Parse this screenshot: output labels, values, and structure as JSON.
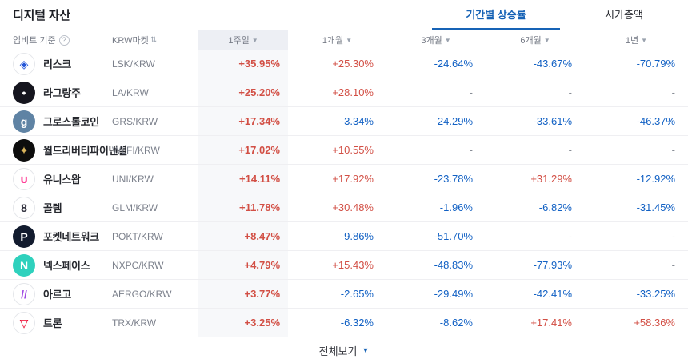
{
  "header": {
    "title": "디지털 자산",
    "tabs": [
      {
        "label": "기간별 상승률"
      },
      {
        "label": "시가총액"
      }
    ]
  },
  "table": {
    "basis_label": "업비트 기준",
    "market_label": "KRW마켓",
    "period_columns": [
      "1주일",
      "1개월",
      "3개월",
      "6개월",
      "1년"
    ],
    "rows": [
      {
        "name": "리스크",
        "ticker": "LSK/KRW",
        "icon": {
          "name": "lisk-logo",
          "glyph": "◈",
          "bg": "#ffffff",
          "fg": "#2456d8",
          "border": true
        },
        "values": [
          {
            "t": "+35.95%",
            "d": "up"
          },
          {
            "t": "+25.30%",
            "d": "up"
          },
          {
            "t": "-24.64%",
            "d": "down"
          },
          {
            "t": "-43.67%",
            "d": "down"
          },
          {
            "t": "-70.79%",
            "d": "down"
          }
        ]
      },
      {
        "name": "라그랑주",
        "ticker": "LA/KRW",
        "icon": {
          "name": "lagrange-logo",
          "glyph": "•",
          "bg": "#15151e",
          "fg": "#ffffff",
          "border": false
        },
        "values": [
          {
            "t": "+25.20%",
            "d": "up"
          },
          {
            "t": "+28.10%",
            "d": "up"
          },
          {
            "t": "-",
            "d": "flat"
          },
          {
            "t": "-",
            "d": "flat"
          },
          {
            "t": "-",
            "d": "flat"
          }
        ]
      },
      {
        "name": "그로스톨코인",
        "ticker": "GRS/KRW",
        "icon": {
          "name": "groestlcoin-logo",
          "glyph": "g",
          "bg": "#5f83a4",
          "fg": "#ffffff",
          "border": false
        },
        "values": [
          {
            "t": "+17.34%",
            "d": "up"
          },
          {
            "t": "-3.34%",
            "d": "down"
          },
          {
            "t": "-24.29%",
            "d": "down"
          },
          {
            "t": "-33.61%",
            "d": "down"
          },
          {
            "t": "-46.37%",
            "d": "down"
          }
        ]
      },
      {
        "name": "월드리버티파이낸셜",
        "ticker": "WLFI/KRW",
        "icon": {
          "name": "wlfi-logo",
          "glyph": "✦",
          "bg": "#0d0d0d",
          "fg": "#d9b45b",
          "border": false
        },
        "values": [
          {
            "t": "+17.02%",
            "d": "up"
          },
          {
            "t": "+10.55%",
            "d": "up"
          },
          {
            "t": "-",
            "d": "flat"
          },
          {
            "t": "-",
            "d": "flat"
          },
          {
            "t": "-",
            "d": "flat"
          }
        ]
      },
      {
        "name": "유니스왑",
        "ticker": "UNI/KRW",
        "icon": {
          "name": "uniswap-logo",
          "glyph": "∪",
          "bg": "#ffffff",
          "fg": "#ff2f8e",
          "border": true
        },
        "values": [
          {
            "t": "+14.11%",
            "d": "up"
          },
          {
            "t": "+17.92%",
            "d": "up"
          },
          {
            "t": "-23.78%",
            "d": "down"
          },
          {
            "t": "+31.29%",
            "d": "up"
          },
          {
            "t": "-12.92%",
            "d": "down"
          }
        ]
      },
      {
        "name": "골렘",
        "ticker": "GLM/KRW",
        "icon": {
          "name": "golem-logo",
          "glyph": "8",
          "bg": "#ffffff",
          "fg": "#2b2b38",
          "border": true
        },
        "values": [
          {
            "t": "+11.78%",
            "d": "up"
          },
          {
            "t": "+30.48%",
            "d": "up"
          },
          {
            "t": "-1.96%",
            "d": "down"
          },
          {
            "t": "-6.82%",
            "d": "down"
          },
          {
            "t": "-31.45%",
            "d": "down"
          }
        ]
      },
      {
        "name": "포켓네트워크",
        "ticker": "POKT/KRW",
        "icon": {
          "name": "pocket-network-logo",
          "glyph": "P",
          "bg": "#121b2e",
          "fg": "#ffffff",
          "border": false
        },
        "values": [
          {
            "t": "+8.47%",
            "d": "up"
          },
          {
            "t": "-9.86%",
            "d": "down"
          },
          {
            "t": "-51.70%",
            "d": "down"
          },
          {
            "t": "-",
            "d": "flat"
          },
          {
            "t": "-",
            "d": "flat"
          }
        ]
      },
      {
        "name": "넥스페이스",
        "ticker": "NXPC/KRW",
        "icon": {
          "name": "nexpace-logo",
          "glyph": "N",
          "bg": "#2fd1bd",
          "fg": "#ffffff",
          "border": false
        },
        "values": [
          {
            "t": "+4.79%",
            "d": "up"
          },
          {
            "t": "+15.43%",
            "d": "up"
          },
          {
            "t": "-48.83%",
            "d": "down"
          },
          {
            "t": "-77.93%",
            "d": "down"
          },
          {
            "t": "-",
            "d": "flat"
          }
        ]
      },
      {
        "name": "아르고",
        "ticker": "AERGO/KRW",
        "icon": {
          "name": "aergo-logo",
          "glyph": "//",
          "bg": "#ffffff",
          "fg": "#a04ae3",
          "border": true
        },
        "values": [
          {
            "t": "+3.77%",
            "d": "up"
          },
          {
            "t": "-2.65%",
            "d": "down"
          },
          {
            "t": "-29.49%",
            "d": "down"
          },
          {
            "t": "-42.41%",
            "d": "down"
          },
          {
            "t": "-33.25%",
            "d": "down"
          }
        ]
      },
      {
        "name": "트론",
        "ticker": "TRX/KRW",
        "icon": {
          "name": "tron-logo",
          "glyph": "▽",
          "bg": "#ffffff",
          "fg": "#eb0029",
          "border": true
        },
        "values": [
          {
            "t": "+3.25%",
            "d": "up"
          },
          {
            "t": "-6.32%",
            "d": "down"
          },
          {
            "t": "-8.62%",
            "d": "down"
          },
          {
            "t": "+17.41%",
            "d": "up"
          },
          {
            "t": "+58.36%",
            "d": "up"
          }
        ]
      }
    ]
  },
  "footer": {
    "view_all_label": "전체보기"
  },
  "colors": {
    "up": "#d24f45",
    "down": "#1261c4",
    "accent": "#1763b6"
  }
}
